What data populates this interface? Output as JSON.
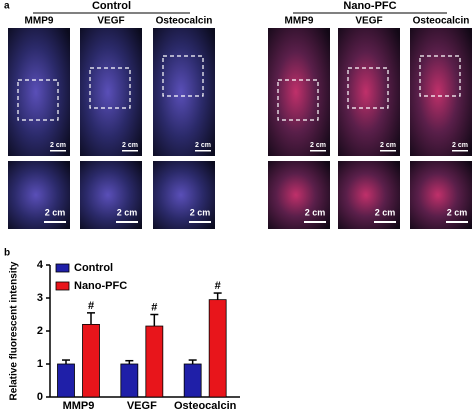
{
  "panel_a": {
    "label": "a",
    "groups": [
      {
        "name": "Control",
        "columns": [
          "MMP9",
          "VEGF",
          "Osteocalcin"
        ]
      },
      {
        "name": "Nano-PFC",
        "columns": [
          "MMP9",
          "VEGF",
          "Osteocalcin"
        ]
      }
    ],
    "scale_bar": "2 cm"
  },
  "chart_data": {
    "type": "bar",
    "panel_label": "b",
    "ylabel": "Relative fluorescent intensity",
    "categories": [
      "MMP9",
      "VEGF",
      "Osteocalcin"
    ],
    "series": [
      {
        "name": "Control",
        "color": "#1f1fa8",
        "values": [
          1.0,
          1.0,
          1.0
        ],
        "errors": [
          0.12,
          0.1,
          0.12
        ]
      },
      {
        "name": "Nano-PFC",
        "color": "#e8151b",
        "values": [
          2.2,
          2.15,
          2.95
        ],
        "errors": [
          0.35,
          0.35,
          0.2
        ],
        "annotations": [
          "#",
          "#",
          "#"
        ]
      }
    ],
    "ylim": [
      0,
      4
    ],
    "yticks": [
      0,
      1,
      2,
      3,
      4
    ],
    "legend": "upper left"
  }
}
